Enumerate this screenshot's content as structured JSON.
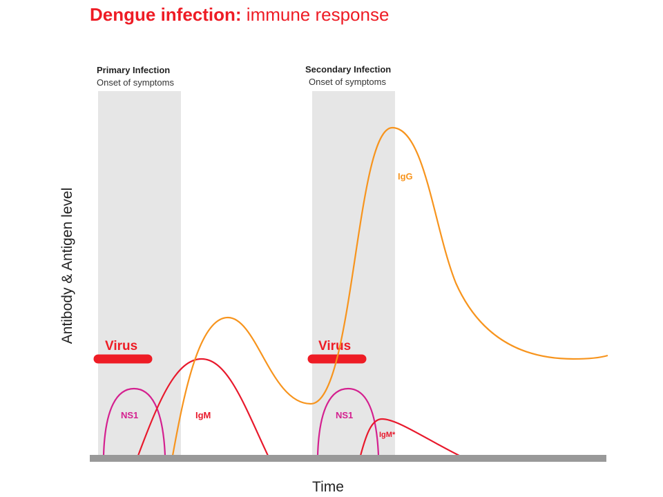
{
  "title": {
    "bold": "Dengue infection:",
    "rest": " immune response"
  },
  "phases": {
    "primary": {
      "name": "Primary Infection",
      "sub": "Onset of symptoms"
    },
    "secondary": {
      "name": "Secondary Infection",
      "sub": "Onset of symptoms"
    }
  },
  "axes": {
    "ylabel": "Antibody & Antigen level",
    "xlabel": "Time"
  },
  "labels": {
    "virus1": "Virus",
    "virus2": "Virus",
    "ns1_1": "NS1",
    "ns1_2": "NS1",
    "igm": "IgM",
    "igm_star": "IgM*",
    "igg": "IgG"
  },
  "colors": {
    "title": "#ee1c25",
    "virus": "#ee1c25",
    "ns1": "#d4208f",
    "igm": "#e8192c",
    "igg": "#f7941d",
    "shade": "#e6e6e6",
    "baseline": "#999999",
    "text": "#222222"
  }
}
